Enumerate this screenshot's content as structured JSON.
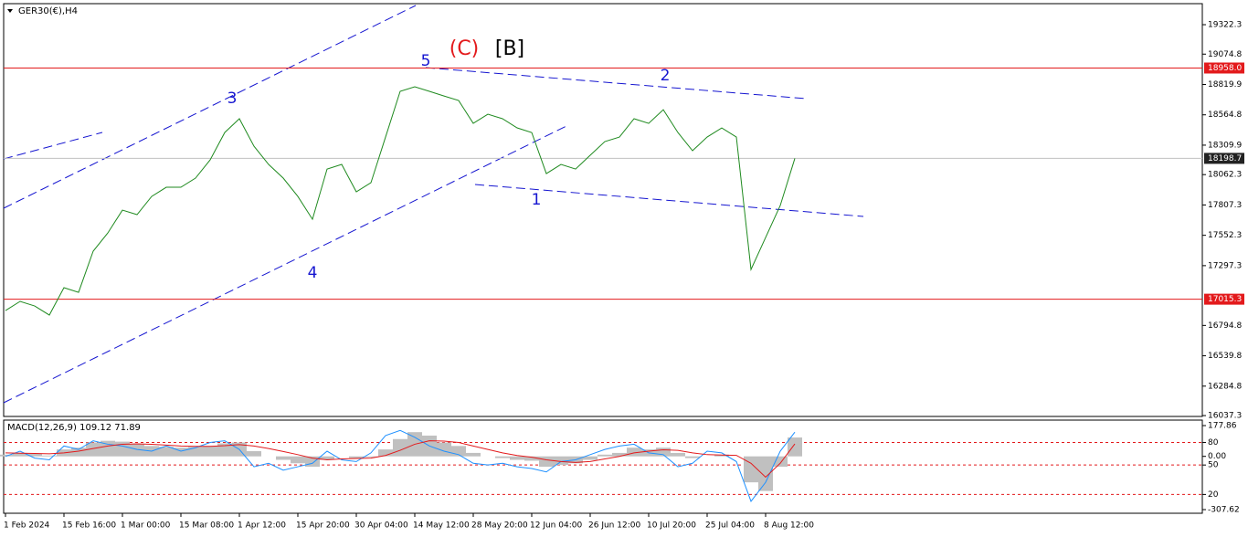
{
  "chart_data": [
    {
      "type": "line",
      "title": "GER30(€),H4",
      "categories": [
        "1 Feb 2024",
        null,
        null,
        null,
        "15 Feb 16:00",
        null,
        null,
        null,
        "1 Mar 00:00",
        null,
        null,
        null,
        "15 Mar 08:00",
        null,
        null,
        null,
        "1 Apr 12:00",
        null,
        null,
        null,
        "15 Apr 20:00",
        null,
        null,
        null,
        "30 Apr 04:00",
        null,
        null,
        null,
        "14 May 12:00",
        null,
        null,
        null,
        "28 May 20:00",
        null,
        null,
        null,
        "12 Jun 04:00",
        null,
        null,
        null,
        "26 Jun 12:00",
        null,
        null,
        null,
        "10 Jul 20:00",
        null,
        null,
        null,
        "25 Jul 04:00",
        null,
        null,
        null,
        "8 Aug 12:00",
        null,
        null
      ],
      "values": [
        16920,
        16997,
        16958,
        16882,
        17112,
        17073,
        17419,
        17572,
        17764,
        17726,
        17879,
        17956,
        17956,
        18033,
        18186,
        18416,
        18532,
        18301,
        18148,
        18033,
        17879,
        17687,
        18109,
        18148,
        17918,
        17994,
        18378,
        18762,
        18800,
        18762,
        18723,
        18685,
        18493,
        18570,
        18532,
        18455,
        18416,
        18071,
        18148,
        18109,
        18225,
        18340,
        18378,
        18532,
        18493,
        18608,
        18416,
        18263,
        18378,
        18455,
        18378,
        17265,
        17534,
        17802,
        18198.7
      ],
      "color": "#1f8a1f",
      "ylim": [
        16030,
        19499
      ],
      "yticks": [
        19322.3,
        19074.8,
        18819.9,
        18564.8,
        18309.9,
        18062.3,
        17807.3,
        17552.3,
        17297.3,
        16794.8,
        16539.8,
        16284.8,
        16037.3
      ],
      "levels": [
        {
          "value": 18958,
          "label": "18958.0"
        },
        {
          "value": 17015.3,
          "label": "17015.3"
        }
      ],
      "level_color": "#e31a1c",
      "annotations": [
        {
          "text": "(C)",
          "color": "#e31a1c"
        },
        {
          "text": "[B]",
          "color": "#000000"
        },
        {
          "text": "5",
          "color": "#1515d0"
        },
        {
          "text": "3",
          "color": "#1515d0"
        },
        {
          "text": "4",
          "color": "#1515d0"
        },
        {
          "text": "1",
          "color": "#1515d0"
        },
        {
          "text": "2",
          "color": "#1515d0"
        }
      ]
    },
    {
      "type": "macd",
      "title": "MACD(12,26,9) 109.12 71.89",
      "series": [
        {
          "color": "#c0c0c0",
          "values": [
            10,
            20,
            15,
            5,
            40,
            50,
            80,
            90,
            85,
            70,
            60,
            55,
            50,
            55,
            60,
            75,
            80,
            30,
            0,
            -20,
            -40,
            -60,
            -20,
            0,
            -10,
            -5,
            40,
            100,
            140,
            120,
            80,
            60,
            20,
            0,
            -10,
            -20,
            -25,
            -60,
            -50,
            -40,
            -20,
            10,
            20,
            50,
            40,
            50,
            20,
            -10,
            0,
            10,
            0,
            -150,
            -200,
            -60,
            109.12
          ]
        },
        {
          "color": "#e31a1c",
          "values": [
            20,
            18,
            17,
            15,
            20,
            30,
            45,
            60,
            70,
            72,
            70,
            65,
            60,
            58,
            58,
            62,
            68,
            60,
            45,
            28,
            10,
            -10,
            -20,
            -15,
            -12,
            -10,
            5,
            35,
            70,
            90,
            88,
            80,
            60,
            40,
            20,
            5,
            -5,
            -20,
            -30,
            -35,
            -30,
            -15,
            0,
            20,
            30,
            38,
            35,
            20,
            10,
            8,
            6,
            -40,
            -120,
            -40,
            71.89
          ]
        },
        {
          "color": "#1e90ff",
          "values": [
            0,
            30,
            -10,
            -20,
            60,
            40,
            90,
            70,
            60,
            40,
            30,
            60,
            30,
            50,
            80,
            90,
            40,
            -60,
            -40,
            -80,
            -60,
            -40,
            30,
            -20,
            -30,
            20,
            120,
            150,
            110,
            60,
            30,
            10,
            -40,
            -50,
            -40,
            -60,
            -70,
            -90,
            -30,
            -20,
            10,
            40,
            60,
            70,
            20,
            10,
            -60,
            -40,
            30,
            20,
            -30,
            -260,
            -150,
            30,
            140
          ]
        }
      ],
      "ylim": [
        -307.62,
        177.86
      ],
      "yticks": [
        177.86,
        80,
        {
          "value": 0,
          "label": "0.00"
        },
        {
          "value": -50,
          "label": "50"
        },
        {
          "value": -220,
          "label": "20"
        },
        -307.62
      ],
      "levels": [
        80,
        -50,
        -220
      ],
      "level_color": "#e31a1c"
    }
  ]
}
